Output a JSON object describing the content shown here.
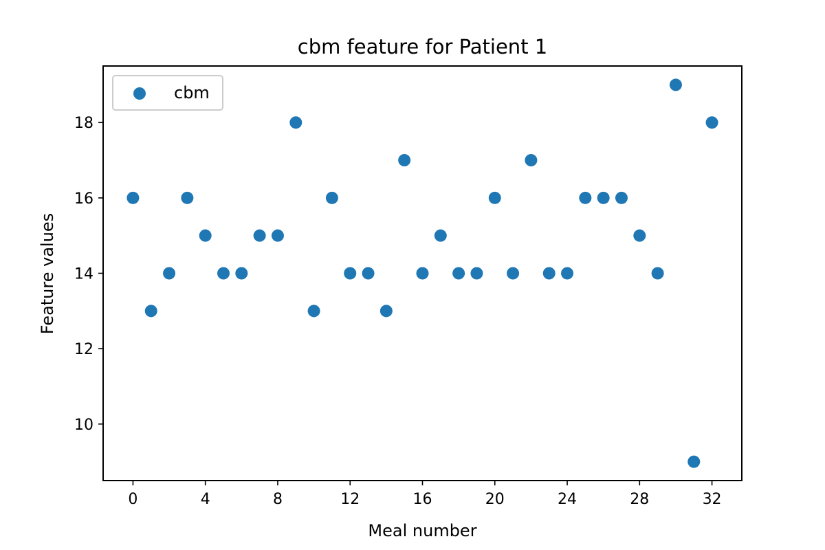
{
  "chart_data": {
    "type": "scatter",
    "title": "cbm feature for Patient 1",
    "xlabel": "Meal number",
    "ylabel": "Feature values",
    "xlim": [
      -1.65,
      33.65
    ],
    "ylim": [
      8.5,
      19.5
    ],
    "xticks": [
      0,
      4,
      8,
      12,
      16,
      20,
      24,
      28,
      32
    ],
    "yticks": [
      10,
      12,
      14,
      16,
      18
    ],
    "grid": false,
    "legend": "upper-left",
    "series": [
      {
        "name": "cbm",
        "color": "#1f77b4",
        "x": [
          0,
          1,
          2,
          3,
          4,
          5,
          6,
          7,
          8,
          9,
          10,
          11,
          12,
          13,
          14,
          15,
          16,
          17,
          18,
          19,
          20,
          21,
          22,
          23,
          24,
          25,
          26,
          27,
          28,
          29,
          30,
          31,
          32
        ],
        "y": [
          16,
          13,
          14,
          16,
          15,
          14,
          14,
          15,
          15,
          18,
          13,
          16,
          14,
          14,
          13,
          17,
          14,
          15,
          14,
          14,
          16,
          14,
          17,
          14,
          14,
          16,
          16,
          16,
          15,
          14,
          19,
          9,
          18
        ]
      }
    ]
  }
}
